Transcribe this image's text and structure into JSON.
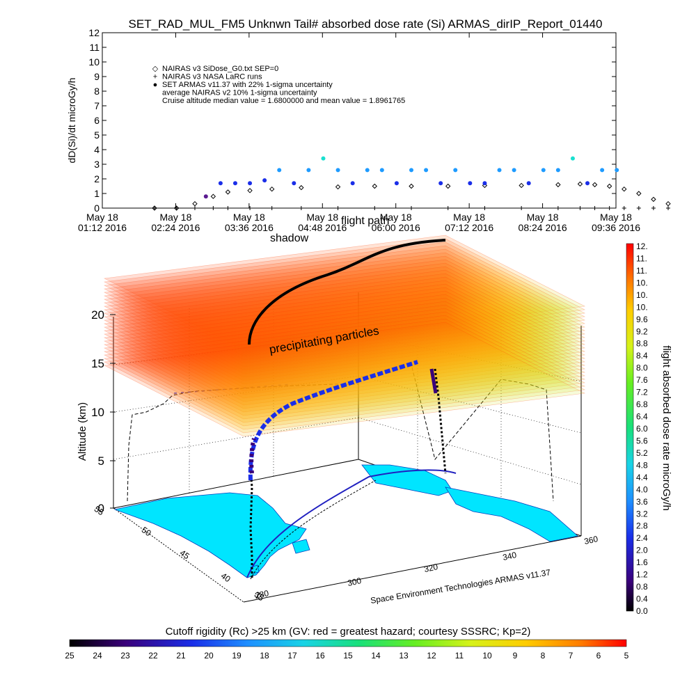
{
  "title": "SET_RAD_MUL_FM5 Unknwn Tail#  absorbed dose rate (Si) ARMAS_dirIP_Report_01440",
  "chart_data": [
    {
      "type": "scatter",
      "ylabel": "dD(Si)/dt microGy/h",
      "ylim": [
        0,
        12
      ],
      "yticks": [
        "0",
        "1",
        "2",
        "3",
        "4",
        "5",
        "6",
        "7",
        "8",
        "9",
        "10",
        "11",
        "12"
      ],
      "xticks": [
        {
          "line1": "May 18",
          "line2": "01:12 2016"
        },
        {
          "line1": "May 18",
          "line2": "02:24 2016"
        },
        {
          "line1": "May 18",
          "line2": "03:36 2016"
        },
        {
          "line1": "May 18",
          "line2": "04:48 2016"
        },
        {
          "line1": "May 18",
          "line2": "06:00 2016"
        },
        {
          "line1": "May 18",
          "line2": "07:12 2016"
        },
        {
          "line1": "May 18",
          "line2": "08:24 2016"
        },
        {
          "line1": "May 18",
          "line2": "09:36 2016"
        }
      ],
      "legend": [
        {
          "symbol": "◇",
          "text": "NAIRAS v3 SiDose_G0.txt SEP=0"
        },
        {
          "symbol": "+",
          "text": "NAIRAS v3 NASA LaRC runs"
        },
        {
          "symbol": "●",
          "text": "SET ARMAS v11.37 with 22% 1-sigma uncertainty"
        },
        {
          "symbol": "",
          "text": "average NAIRAS v2 10% 1-sigma uncertainty"
        },
        {
          "symbol": "",
          "text": "Cruise altitude median value = 1.6800000 and mean value = 1.8961765"
        }
      ],
      "series": [
        {
          "name": "NAIRAS v3 SiDose_G0.txt SEP=0",
          "color": "#000000",
          "x": [
            0.0,
            0.3,
            0.55,
            0.8,
            1.0,
            1.3,
            1.6,
            2.0,
            2.5,
            3.0,
            3.5,
            4.0,
            4.5,
            5.0,
            5.5,
            5.8,
            6.0,
            6.2,
            6.4,
            6.6,
            6.8,
            7.0,
            7.5,
            8.0
          ],
          "y": [
            0,
            0,
            0.3,
            0.8,
            1.1,
            1.2,
            1.3,
            1.4,
            1.45,
            1.5,
            1.5,
            1.5,
            1.55,
            1.55,
            1.6,
            1.65,
            1.6,
            1.5,
            1.3,
            1.0,
            0.6,
            0.3,
            0,
            0
          ]
        },
        {
          "name": "NAIRAS v3 NASA LaRC runs",
          "color": "#000000",
          "x": [
            0.0,
            0.3,
            0.55,
            0.8,
            1.0,
            1.3,
            1.6,
            2.0,
            2.5,
            3.0,
            3.5,
            4.0,
            4.5,
            5.0,
            5.5,
            5.8,
            6.0,
            6.2,
            6.4,
            6.6,
            6.8,
            7.0,
            7.5,
            8.0
          ],
          "y": [
            0,
            0,
            0,
            0,
            0,
            0,
            0,
            0,
            0,
            0,
            0,
            0,
            0,
            0,
            0,
            0,
            0,
            0,
            0,
            0,
            0,
            0,
            0,
            0
          ]
        },
        {
          "name": "SET ARMAS v11.37 with 22% 1-sigma uncertainty",
          "color": "#1a2ee8",
          "x": [
            0.7,
            0.9,
            1.1,
            1.3,
            1.5,
            1.7,
            1.9,
            2.1,
            2.3,
            2.5,
            2.7,
            2.9,
            3.1,
            3.3,
            3.5,
            3.7,
            3.9,
            4.1,
            4.3,
            4.5,
            4.7,
            4.9,
            5.1,
            5.3,
            5.5,
            5.7,
            5.9,
            6.1,
            6.3
          ],
          "y": [
            0.8,
            1.7,
            1.7,
            1.7,
            1.9,
            2.6,
            1.7,
            2.6,
            3.4,
            2.6,
            1.7,
            2.6,
            2.6,
            1.7,
            2.6,
            2.6,
            1.7,
            2.6,
            1.7,
            1.7,
            2.6,
            2.6,
            1.7,
            2.6,
            2.6,
            3.4,
            1.7,
            2.6,
            2.6
          ]
        }
      ]
    },
    {
      "type": "scatter",
      "zlabel": "Altitude (km)",
      "zticks": [
        "0",
        "5",
        "10",
        "15",
        "20"
      ],
      "ylim": [
        35,
        55
      ],
      "yticks": [
        "35",
        "40",
        "45",
        "50",
        "55"
      ],
      "xlim": [
        280,
        360
      ],
      "xticks": [
        "280",
        "300",
        "320",
        "340",
        "360"
      ],
      "annotations": [
        "precipitating particles",
        "shadow",
        "flight path"
      ],
      "credit": "Space Environment Technologies ARMAS v11.37",
      "colorbar_label": "flight absorbed dose rate microGy/h",
      "colorbar_ticks": [
        "12.",
        "11.",
        "11.",
        "10.",
        "10.",
        "10.",
        "9.6",
        "9.2",
        "8.8",
        "8.4",
        "8.0",
        "7.6",
        "7.2",
        "6.8",
        "6.4",
        "6.0",
        "5.6",
        "5.2",
        "4.8",
        "4.4",
        "4.0",
        "3.6",
        "3.2",
        "2.8",
        "2.4",
        "2.0",
        "1.6",
        "1.2",
        "0.8",
        "0.4",
        "0.0"
      ],
      "rc_label": "Cutoff rigidity (Rc) >25 km (GV: red = greatest hazard; courtesy SSSRC; Kp=2)",
      "rc_ticks": [
        "25",
        "24",
        "23",
        "22",
        "21",
        "20",
        "19",
        "18",
        "17",
        "16",
        "15",
        "14",
        "13",
        "12",
        "11",
        "10",
        "9",
        "8",
        "7",
        "6",
        "5"
      ]
    }
  ]
}
